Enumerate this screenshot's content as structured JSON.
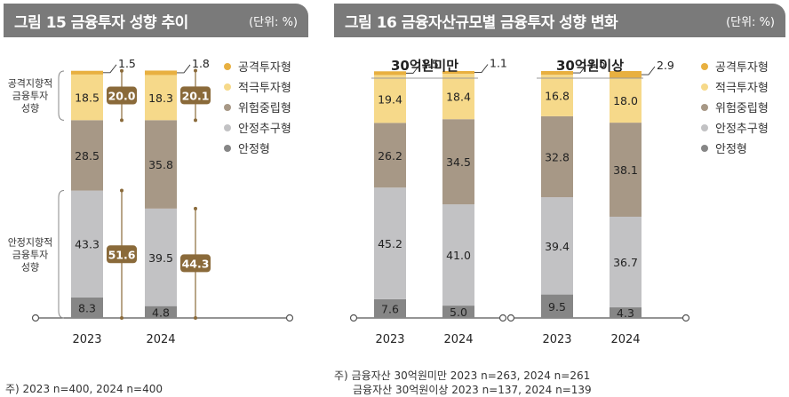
{
  "fig15": {
    "title": "그림 15  금융투자 성향 추이",
    "unit": "(단위: %)"
  },
  "fig16": {
    "title": "그림 16  금융자산규모별 금융투자 성향 변화",
    "unit": "(단위: %)"
  },
  "legend": [
    "공격투자형",
    "적극투자형",
    "위험중립형",
    "안정추구형",
    "안정형"
  ],
  "colors": {
    "aggressive": "#e8b040",
    "active": "#f6d98a",
    "neutral": "#a79886",
    "stable_seek": "#c2c2c4",
    "stable": "#868686",
    "bracket": "#8a6a3a"
  },
  "fig15_groups": {
    "top": "공격지향적\n금융투자\n성향",
    "bottom": "안정지향적\n금융투자\n성향"
  },
  "fig16_subtitles": [
    "30억원미만",
    "30억원이상"
  ],
  "chart_data": [
    {
      "type": "bar",
      "stacked": true,
      "categories": [
        "2023",
        "2024"
      ],
      "series": [
        {
          "name": "안정형",
          "values": [
            8.3,
            4.8
          ]
        },
        {
          "name": "안정추구형",
          "values": [
            43.3,
            39.5
          ]
        },
        {
          "name": "위험중립형",
          "values": [
            28.5,
            35.8
          ]
        },
        {
          "name": "적극투자형",
          "values": [
            18.5,
            18.3
          ]
        },
        {
          "name": "공격투자형",
          "values": [
            1.5,
            1.8
          ]
        }
      ],
      "group_totals": {
        "aggressive_oriented": [
          "20.0",
          "20.1"
        ],
        "stable_oriented": [
          "51.6",
          "44.3"
        ]
      },
      "note": "주) 2023 n=400, 2024 n=400"
    },
    {
      "type": "bar",
      "stacked": true,
      "title": "30억원미만",
      "categories": [
        "2023",
        "2024"
      ],
      "series": [
        {
          "name": "안정형",
          "values": [
            7.6,
            5.0
          ]
        },
        {
          "name": "안정추구형",
          "values": [
            45.2,
            41.0
          ]
        },
        {
          "name": "위험중립형",
          "values": [
            26.2,
            34.5
          ]
        },
        {
          "name": "적극투자형",
          "values": [
            19.4,
            18.4
          ]
        },
        {
          "name": "공격투자형",
          "values": [
            1.5,
            1.1
          ]
        }
      ]
    },
    {
      "type": "bar",
      "stacked": true,
      "title": "30억원이상",
      "categories": [
        "2023",
        "2024"
      ],
      "series": [
        {
          "name": "안정형",
          "values": [
            9.5,
            4.3
          ]
        },
        {
          "name": "안정추구형",
          "values": [
            39.4,
            36.7
          ]
        },
        {
          "name": "위험중립형",
          "values": [
            32.8,
            38.1
          ]
        },
        {
          "name": "적극투자형",
          "values": [
            16.8,
            18.0
          ]
        },
        {
          "name": "공격투자형",
          "values": [
            1.5,
            2.9
          ]
        }
      ]
    }
  ],
  "notes": {
    "fig15": "주) 2023 n=400, 2024 n=400",
    "fig16_line1": "주) 금융자산 30억원미만 2023 n=263, 2024 n=261",
    "fig16_line2": "금융자산 30억원이상 2023 n=137, 2024 n=139"
  }
}
